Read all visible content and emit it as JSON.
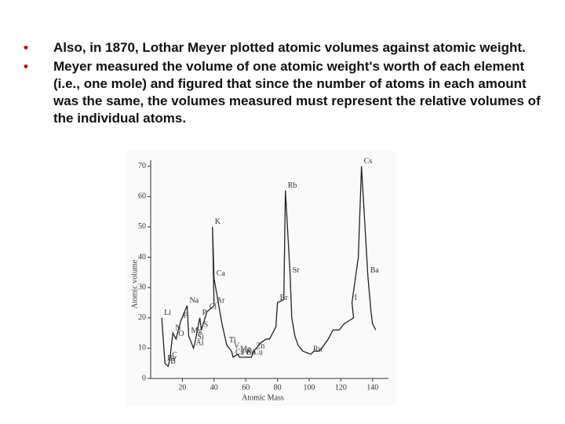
{
  "bullets": [
    "Also, in 1870, Lothar Meyer plotted atomic volumes against atomic weight.",
    " Meyer measured the volume of one atomic weight's worth of each element (i.e., one mole) and figured that since the number of atoms in each amount was the same, the volumes measured must represent the relative volumes of the individual atoms."
  ],
  "chart_data": {
    "type": "line",
    "x_label": "Atomic Mass",
    "y_label": "Atomic volume",
    "xlim": [
      0,
      150
    ],
    "ylim": [
      0,
      72
    ],
    "xticks": [
      20,
      40,
      60,
      80,
      100,
      120,
      140
    ],
    "yticks": [
      0,
      10,
      20,
      30,
      40,
      50,
      60,
      70
    ],
    "color": "#222222",
    "x": [
      7,
      9,
      11,
      12,
      14,
      16,
      19,
      23,
      24,
      27,
      28,
      31,
      32,
      35.5,
      40,
      39,
      40,
      45,
      48,
      51,
      52,
      55,
      56,
      59,
      59,
      63.5,
      65,
      70,
      73,
      75,
      79,
      80,
      84,
      85,
      88,
      89,
      91,
      93,
      96,
      101,
      103,
      106,
      108,
      112,
      115,
      119,
      122,
      128,
      127,
      131,
      133,
      137,
      139,
      140,
      142
    ],
    "values": [
      20,
      5,
      4,
      6,
      15,
      13,
      19,
      24,
      14,
      10,
      12,
      20,
      16,
      22,
      24,
      50,
      33,
      18,
      11,
      9,
      7,
      8,
      7,
      7,
      7,
      7,
      9,
      12,
      13,
      13,
      17,
      25,
      26,
      62,
      34,
      20,
      14,
      11,
      9,
      8,
      9,
      9,
      10,
      13,
      16,
      16,
      18,
      20,
      25,
      40,
      70,
      34,
      22,
      18,
      16
    ],
    "point_labels": [
      "Li",
      "Be",
      "B",
      "C",
      "N",
      "O",
      "F",
      "Na",
      "Mg",
      "Al",
      "Si",
      "P",
      "S",
      "Cl",
      "Ar",
      "K",
      "Ca",
      null,
      "Ti",
      "V",
      "Cr",
      "Mn",
      "Fe",
      "Co",
      "Ni",
      "Cu",
      "Zn",
      null,
      null,
      null,
      null,
      "Br",
      null,
      "Rb",
      "Sr",
      null,
      null,
      null,
      null,
      "Ru",
      null,
      null,
      null,
      null,
      null,
      null,
      null,
      null,
      "I",
      null,
      "Cs",
      "Ba",
      null,
      null,
      null
    ]
  }
}
